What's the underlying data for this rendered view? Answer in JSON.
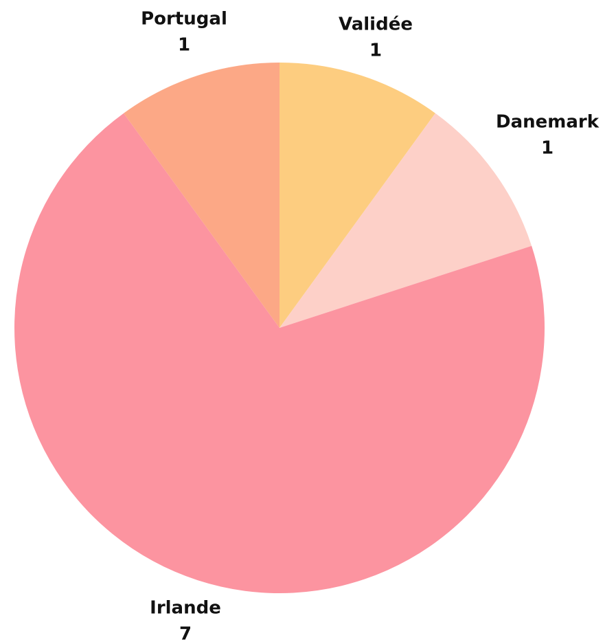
{
  "chart_data": {
    "type": "pie",
    "categories": [
      "Validée",
      "Danemark",
      "Irlande",
      "Portugal"
    ],
    "values": [
      1,
      1,
      7,
      1
    ],
    "colors": [
      "#fdcd80",
      "#fdd0c8",
      "#fc94a0",
      "#fca886"
    ]
  }
}
